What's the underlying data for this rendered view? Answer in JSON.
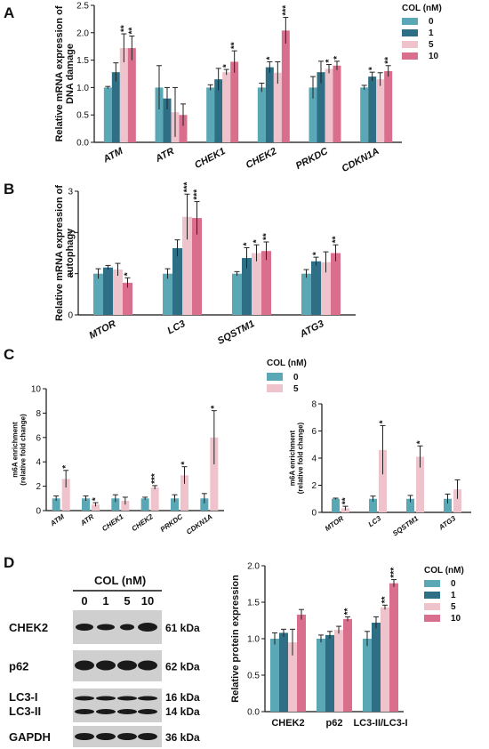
{
  "colors": {
    "0": "#5aa7b5",
    "1": "#2f6f85",
    "5": "#efc3cb",
    "10": "#d96f8c",
    "blot_bg": "#cfcfcf",
    "band": "#1a1a1a"
  },
  "panels": {
    "A": "A",
    "B": "B",
    "C": "C",
    "D": "D"
  },
  "legend_A": {
    "title": "COL (nM)",
    "entries": [
      "0",
      "1",
      "5",
      "10"
    ]
  },
  "legend_C": {
    "title": "COL (nM)",
    "entries": [
      "0",
      "5"
    ]
  },
  "legend_D": {
    "title": "COL (nM)",
    "entries": [
      "0",
      "1",
      "5",
      "10"
    ]
  },
  "blot": {
    "header": "COL (nM)",
    "lanes": [
      "0",
      "1",
      "5",
      "10"
    ],
    "proteins": [
      "CHEK2",
      "p62",
      "LC3-I",
      "LC3-II",
      "GAPDH"
    ],
    "kda": [
      "61 kDa",
      "62 kDa",
      "16 kDa",
      "14 kDa",
      "36 kDa"
    ]
  },
  "chart_data": [
    {
      "id": "A",
      "type": "bar",
      "ylabel": "Relative mRNA expression of DNA damage",
      "ylabel_lines": [
        "Relative mRNA expression of",
        "DNA damage"
      ],
      "ylim": [
        0,
        2.5
      ],
      "yticks": [
        "0.0",
        "0.5",
        "1.0",
        "1.5",
        "2.0",
        "2.5"
      ],
      "categories": [
        "ATM",
        "ATR",
        "CHEK1",
        "CHEK2",
        "PRKDC",
        "CDKN1A"
      ],
      "series": [
        {
          "name": "0",
          "values": [
            1.0,
            1.0,
            1.0,
            1.0,
            1.0,
            1.0
          ],
          "errors": [
            0.02,
            0.4,
            0.05,
            0.08,
            0.2,
            0.04
          ]
        },
        {
          "name": "1",
          "values": [
            1.28,
            0.8,
            1.15,
            1.37,
            1.28,
            1.2
          ],
          "errors": [
            0.17,
            0.2,
            0.2,
            0.1,
            0.2,
            0.08
          ]
        },
        {
          "name": "5",
          "values": [
            1.72,
            0.55,
            1.28,
            1.27,
            1.34,
            1.15
          ],
          "errors": [
            0.26,
            0.45,
            0.05,
            0.2,
            0.08,
            0.12
          ]
        },
        {
          "name": "10",
          "values": [
            1.72,
            0.5,
            1.47,
            2.04,
            1.4,
            1.3
          ],
          "errors": [
            0.22,
            0.2,
            0.2,
            0.24,
            0.08,
            0.1
          ]
        }
      ],
      "stars": [
        {
          "cat": 0,
          "series": 2,
          "text": "**"
        },
        {
          "cat": 0,
          "series": 3,
          "text": "**"
        },
        {
          "cat": 2,
          "series": 2,
          "text": "*"
        },
        {
          "cat": 2,
          "series": 3,
          "text": "**"
        },
        {
          "cat": 3,
          "series": 1,
          "text": "*"
        },
        {
          "cat": 3,
          "series": 3,
          "text": "***"
        },
        {
          "cat": 4,
          "series": 2,
          "text": "*"
        },
        {
          "cat": 4,
          "series": 3,
          "text": "*"
        },
        {
          "cat": 5,
          "series": 1,
          "text": "*"
        },
        {
          "cat": 5,
          "series": 3,
          "text": "**"
        }
      ]
    },
    {
      "id": "B",
      "type": "bar",
      "ylabel": "Relative mRNA expression of autophagy",
      "ylabel_lines": [
        "Relative mRNA expression of",
        "autophagy"
      ],
      "ylim": [
        0,
        3
      ],
      "yticks": [
        "0",
        "1",
        "2",
        "3"
      ],
      "categories": [
        "MTOR",
        "LC3",
        "SQSTM1",
        "ATG3"
      ],
      "series": [
        {
          "name": "0",
          "values": [
            1.0,
            1.0,
            1.0,
            1.0
          ],
          "errors": [
            0.12,
            0.12,
            0.05,
            0.1
          ]
        },
        {
          "name": "1",
          "values": [
            1.15,
            1.62,
            1.38,
            1.3
          ],
          "errors": [
            0.05,
            0.2,
            0.25,
            0.1
          ]
        },
        {
          "name": "5",
          "values": [
            1.1,
            2.38,
            1.5,
            1.28
          ],
          "errors": [
            0.15,
            0.55,
            0.2,
            0.25
          ]
        },
        {
          "name": "10",
          "values": [
            0.78,
            2.35,
            1.55,
            1.5
          ],
          "errors": [
            0.12,
            0.4,
            0.22,
            0.2
          ]
        }
      ],
      "stars": [
        {
          "cat": 0,
          "series": 3,
          "text": "*"
        },
        {
          "cat": 1,
          "series": 2,
          "text": "***"
        },
        {
          "cat": 1,
          "series": 3,
          "text": "***"
        },
        {
          "cat": 2,
          "series": 1,
          "text": "*"
        },
        {
          "cat": 2,
          "series": 2,
          "text": "*"
        },
        {
          "cat": 2,
          "series": 3,
          "text": "**"
        },
        {
          "cat": 3,
          "series": 1,
          "text": "*"
        },
        {
          "cat": 3,
          "series": 3,
          "text": "**"
        }
      ]
    },
    {
      "id": "C1",
      "type": "bar",
      "ylabel": "m6A enrichment (relative fold change)",
      "ylabel_lines": [
        "m6A enrichment",
        "(relative fold change)"
      ],
      "ylim": [
        0,
        10
      ],
      "yticks": [
        "0",
        "2",
        "4",
        "6",
        "8",
        "10"
      ],
      "categories": [
        "ATM",
        "ATR",
        "CHEK1",
        "CHEK2",
        "PRKDC",
        "CDKN1A"
      ],
      "series": [
        {
          "name": "0",
          "values": [
            1.0,
            1.0,
            1.0,
            1.0,
            1.0,
            1.0
          ],
          "errors": [
            0.2,
            0.2,
            0.3,
            0.1,
            0.3,
            0.4
          ]
        },
        {
          "name": "5",
          "values": [
            2.6,
            0.5,
            0.8,
            1.9,
            2.9,
            6.0
          ],
          "errors": [
            0.7,
            0.15,
            0.3,
            0.15,
            0.7,
            2.2
          ]
        }
      ],
      "stars": [
        {
          "cat": 0,
          "series": 1,
          "text": "*"
        },
        {
          "cat": 1,
          "series": 1,
          "text": "*"
        },
        {
          "cat": 3,
          "series": 1,
          "text": "***"
        },
        {
          "cat": 4,
          "series": 1,
          "text": "*"
        },
        {
          "cat": 5,
          "series": 1,
          "text": "*"
        }
      ]
    },
    {
      "id": "C2",
      "type": "bar",
      "ylabel": "m6A enrichment (relative fold change)",
      "ylabel_lines": [
        "m6A enrichment",
        "(relative fold change)"
      ],
      "ylim": [
        0,
        8
      ],
      "yticks": [
        "0",
        "2",
        "4",
        "6",
        "8"
      ],
      "categories": [
        "MTOR",
        "LC3",
        "SQSTM1",
        "ATG3"
      ],
      "series": [
        {
          "name": "0",
          "values": [
            1.0,
            1.0,
            1.0,
            1.0
          ],
          "errors": [
            0.05,
            0.2,
            0.25,
            0.35
          ]
        },
        {
          "name": "5",
          "values": [
            0.3,
            4.6,
            4.1,
            1.7
          ],
          "errors": [
            0.15,
            1.8,
            0.8,
            0.7
          ]
        }
      ],
      "stars": [
        {
          "cat": 0,
          "series": 1,
          "text": "**"
        },
        {
          "cat": 1,
          "series": 1,
          "text": "*"
        },
        {
          "cat": 2,
          "series": 1,
          "text": "*"
        }
      ]
    },
    {
      "id": "D",
      "type": "bar",
      "ylabel": "Relative protein expression",
      "ylabel_lines": [
        "Relative protein expression"
      ],
      "ylim": [
        0,
        2.0
      ],
      "yticks": [
        "0.0",
        "0.5",
        "1.0",
        "1.5",
        "2.0"
      ],
      "categories": [
        "CHEK2",
        "p62",
        "LC3-II/LC3-I"
      ],
      "series": [
        {
          "name": "0",
          "values": [
            1.0,
            1.0,
            1.0
          ],
          "errors": [
            0.08,
            0.05,
            0.1
          ]
        },
        {
          "name": "1",
          "values": [
            1.08,
            1.05,
            1.22
          ],
          "errors": [
            0.05,
            0.05,
            0.08
          ]
        },
        {
          "name": "5",
          "values": [
            0.95,
            1.12,
            1.43
          ],
          "errors": [
            0.18,
            0.05,
            0.03
          ]
        },
        {
          "name": "10",
          "values": [
            1.33,
            1.27,
            1.76
          ],
          "errors": [
            0.07,
            0.03,
            0.05
          ]
        }
      ],
      "stars": [
        {
          "cat": 1,
          "series": 3,
          "text": "**"
        },
        {
          "cat": 2,
          "series": 2,
          "text": "**"
        },
        {
          "cat": 2,
          "series": 3,
          "text": "***"
        }
      ]
    }
  ]
}
